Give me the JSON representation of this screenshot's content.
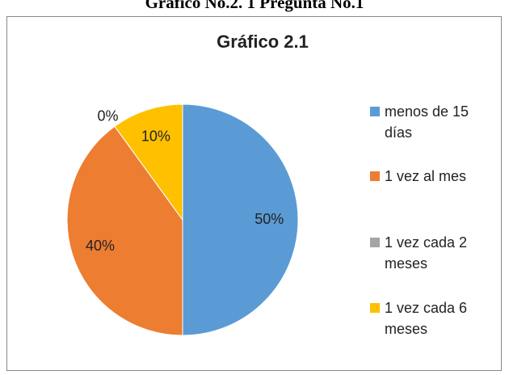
{
  "caption": "Gráfico No.2. 1 Pregunta No.1",
  "chart_data": {
    "type": "pie",
    "title": "Gráfico 2.1",
    "categories": [
      "menos de 15 días",
      "1 vez al mes",
      "1 vez cada 2 meses",
      "1 vez cada 6 meses"
    ],
    "values": [
      50,
      40,
      0,
      10
    ],
    "value_labels": [
      "50%",
      "40%",
      "0%",
      "10%"
    ],
    "colors": [
      "#5b9bd5",
      "#ed7d31",
      "#a5a5a5",
      "#ffc000"
    ],
    "legend": "right"
  }
}
